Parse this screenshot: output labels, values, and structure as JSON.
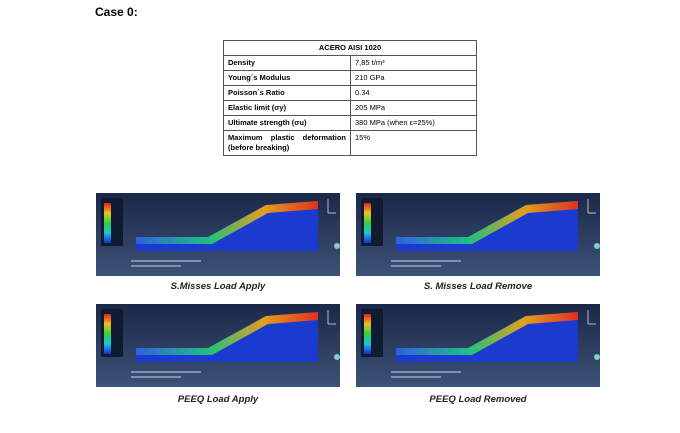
{
  "heading": "Case 0:",
  "table": {
    "title": "ACERO AISI 1020",
    "rows": [
      [
        "Density",
        "7,85 t/m³"
      ],
      [
        "Young´s Modulus",
        "210 GPa"
      ],
      [
        "Poisson´s Ratio",
        "0.34"
      ],
      [
        "Elastic limit (σy)",
        "205 MPa"
      ],
      [
        "Ultimate strength (σu)",
        "380 MPa (when ε=25%)"
      ],
      [
        "Maximum plastic deformation (before breaking)",
        "15%"
      ]
    ]
  },
  "figures": [
    {
      "caption": "S.Misses Load Apply"
    },
    {
      "caption": "S. Misses Load Remove"
    },
    {
      "caption": "PEEQ Load Apply"
    },
    {
      "caption": "PEEQ Load Removed"
    }
  ]
}
